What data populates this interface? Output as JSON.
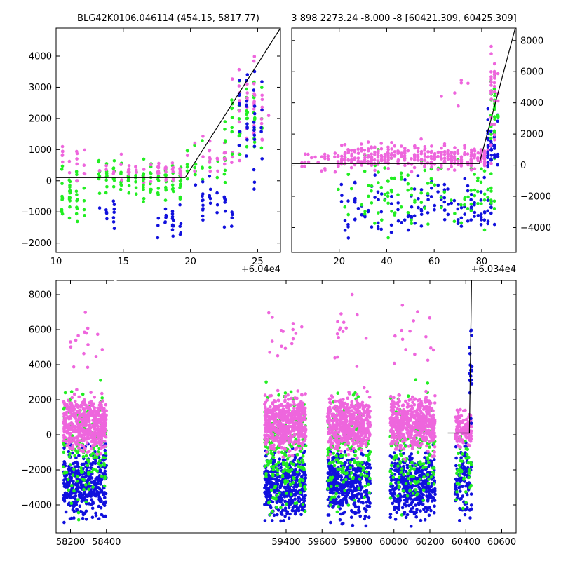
{
  "chart_data": [
    {
      "id": "tl",
      "type": "scatter",
      "title": "BLG42K0106.046114 (454.15, 5817.77)",
      "x_offset_label": "+6.04e4",
      "xlim": [
        10,
        26.7
      ],
      "ylim": [
        -2300,
        4900
      ],
      "y_axis_side": "left",
      "xticks": [
        10,
        15,
        20,
        25
      ],
      "yticks": [
        -2000,
        -1000,
        0,
        1000,
        2000,
        3000,
        4000
      ],
      "colors": {
        "green": "#22ee22",
        "magenta": "#ee66dd",
        "blue": "#1111dd",
        "model": "#000000"
      },
      "model_line": [
        [
          10,
          100
        ],
        [
          19.6,
          100
        ],
        [
          26.7,
          4900
        ]
      ],
      "clusters": [
        {
          "color": "green",
          "n": 40,
          "x": [
            10,
            12.2
          ],
          "y": [
            -1800,
            800
          ]
        },
        {
          "color": "magenta",
          "n": 18,
          "x": [
            10,
            12.2
          ],
          "y": [
            -300,
            1600
          ]
        },
        {
          "color": "green",
          "n": 50,
          "x": [
            13,
            16.4
          ],
          "y": [
            -700,
            950
          ]
        },
        {
          "color": "magenta",
          "n": 20,
          "x": [
            13,
            16.4
          ],
          "y": [
            -300,
            900
          ]
        },
        {
          "color": "blue",
          "n": 12,
          "x": [
            13.4,
            14.6
          ],
          "y": [
            -1900,
            -300
          ]
        },
        {
          "color": "green",
          "n": 50,
          "x": [
            16.4,
            19.4
          ],
          "y": [
            -800,
            850
          ]
        },
        {
          "color": "magenta",
          "n": 30,
          "x": [
            17.2,
            19.4
          ],
          "y": [
            -200,
            800
          ]
        },
        {
          "color": "blue",
          "n": 24,
          "x": [
            17.4,
            19.4
          ],
          "y": [
            -2200,
            -400
          ]
        },
        {
          "color": "green",
          "n": 25,
          "x": [
            19.5,
            22.6
          ],
          "y": [
            -600,
            1500
          ]
        },
        {
          "color": "magenta",
          "n": 30,
          "x": [
            19.5,
            23.5
          ],
          "y": [
            -200,
            1600
          ]
        },
        {
          "color": "blue",
          "n": 30,
          "x": [
            20.5,
            23.5
          ],
          "y": [
            -1800,
            500
          ]
        },
        {
          "color": "green",
          "n": 45,
          "x": [
            22.6,
            25.3
          ],
          "y": [
            200,
            3600
          ]
        },
        {
          "color": "magenta",
          "n": 35,
          "x": [
            23.3,
            25.6
          ],
          "y": [
            500,
            4800
          ]
        },
        {
          "color": "blue",
          "n": 35,
          "x": [
            23.6,
            25.1
          ],
          "y": [
            -1200,
            4700
          ]
        }
      ]
    },
    {
      "id": "tr",
      "type": "scatter",
      "title": "3 898 2273.24 -8.000 -8 [60421.309, 60425.309]",
      "x_offset_label": "+6.034e4",
      "xlim": [
        0,
        94.5
      ],
      "ylim": [
        -5600,
        8800
      ],
      "y_axis_side": "right",
      "xticks": [
        20,
        40,
        60,
        80
      ],
      "yticks": [
        -4000,
        -2000,
        0,
        2000,
        4000,
        6000,
        8000
      ],
      "colors": {
        "green": "#22ee22",
        "magenta": "#ee66dd",
        "blue": "#1111dd",
        "model": "#000000"
      },
      "model_line": [
        [
          0,
          100
        ],
        [
          79,
          100
        ],
        [
          94.5,
          9000
        ]
      ],
      "clusters": [
        {
          "color": "magenta",
          "n": 30,
          "x": [
            4,
            22
          ],
          "y": [
            -800,
            1200
          ]
        },
        {
          "color": "blue",
          "n": 140,
          "x": [
            20,
            86
          ],
          "y": [
            -5400,
            0
          ]
        },
        {
          "color": "green",
          "n": 120,
          "x": [
            20,
            86
          ],
          "y": [
            -5000,
            1500
          ]
        },
        {
          "color": "magenta",
          "n": 320,
          "x": [
            20,
            84
          ],
          "y": [
            -600,
            1800
          ]
        },
        {
          "color": "blue",
          "n": 45,
          "x": [
            82,
            86.5
          ],
          "y": [
            -1500,
            4200
          ]
        },
        {
          "color": "green",
          "n": 30,
          "x": [
            84,
            86.5
          ],
          "y": [
            0,
            7500
          ]
        },
        {
          "color": "magenta",
          "n": 30,
          "x": [
            84,
            86.5
          ],
          "y": [
            200,
            8600
          ]
        },
        {
          "color": "magenta",
          "n": 6,
          "x": [
            60,
            75
          ],
          "y": [
            3000,
            6500
          ]
        }
      ]
    },
    {
      "id": "bottom",
      "type": "scatter",
      "title": "",
      "x_offset_label": "",
      "xlim": [
        58120,
        60680
      ],
      "ylim": [
        -5600,
        8800
      ],
      "y_axis_side": "left",
      "xticks": [
        58200,
        58400,
        59400,
        59600,
        59800,
        60000,
        60200,
        60400,
        60600
      ],
      "yticks": [
        -4000,
        -2000,
        0,
        2000,
        4000,
        6000,
        8000
      ],
      "axis_break_x": 58450,
      "colors": {
        "green": "#22ee22",
        "magenta": "#ee66dd",
        "blue": "#1111dd",
        "model": "#000000"
      },
      "model_line": [
        [
          60300,
          100
        ],
        [
          60420,
          100
        ],
        [
          60432,
          9000
        ]
      ],
      "clusters": [
        {
          "color": "blue",
          "n": 380,
          "x": [
            58160,
            58400
          ],
          "y": [
            -5400,
            0
          ]
        },
        {
          "color": "green",
          "n": 160,
          "x": [
            58160,
            58400
          ],
          "y": [
            -5200,
            3500
          ]
        },
        {
          "color": "magenta",
          "n": 500,
          "x": [
            58160,
            58400
          ],
          "y": [
            -1500,
            2800
          ]
        },
        {
          "color": "magenta",
          "n": 15,
          "x": [
            58200,
            58400
          ],
          "y": [
            2800,
            8200
          ]
        },
        {
          "color": "blue",
          "n": 420,
          "x": [
            59280,
            59510
          ],
          "y": [
            -5600,
            0
          ]
        },
        {
          "color": "green",
          "n": 200,
          "x": [
            59280,
            59510
          ],
          "y": [
            -5600,
            3500
          ]
        },
        {
          "color": "magenta",
          "n": 520,
          "x": [
            59280,
            59510
          ],
          "y": [
            -1500,
            2800
          ]
        },
        {
          "color": "magenta",
          "n": 15,
          "x": [
            59300,
            59500
          ],
          "y": [
            2800,
            8500
          ]
        },
        {
          "color": "blue",
          "n": 420,
          "x": [
            59630,
            59870
          ],
          "y": [
            -5600,
            0
          ]
        },
        {
          "color": "green",
          "n": 160,
          "x": [
            59630,
            59870
          ],
          "y": [
            -5600,
            3500
          ]
        },
        {
          "color": "magenta",
          "n": 520,
          "x": [
            59630,
            59870
          ],
          "y": [
            -1500,
            2800
          ]
        },
        {
          "color": "magenta",
          "n": 15,
          "x": [
            59650,
            59850
          ],
          "y": [
            2800,
            8500
          ]
        },
        {
          "color": "blue",
          "n": 420,
          "x": [
            59980,
            60230
          ],
          "y": [
            -5600,
            0
          ]
        },
        {
          "color": "green",
          "n": 150,
          "x": [
            59980,
            60230
          ],
          "y": [
            -5600,
            3500
          ]
        },
        {
          "color": "magenta",
          "n": 520,
          "x": [
            59980,
            60230
          ],
          "y": [
            -1500,
            2800
          ]
        },
        {
          "color": "magenta",
          "n": 15,
          "x": [
            60000,
            60220
          ],
          "y": [
            2800,
            8600
          ]
        },
        {
          "color": "blue",
          "n": 110,
          "x": [
            60340,
            60432
          ],
          "y": [
            -5400,
            200
          ]
        },
        {
          "color": "green",
          "n": 40,
          "x": [
            60340,
            60432
          ],
          "y": [
            -5200,
            1800
          ]
        },
        {
          "color": "magenta",
          "n": 110,
          "x": [
            60340,
            60432
          ],
          "y": [
            -1200,
            1800
          ]
        },
        {
          "color": "blue",
          "n": 20,
          "x": [
            60420,
            60434
          ],
          "y": [
            0,
            8500
          ]
        }
      ]
    }
  ]
}
